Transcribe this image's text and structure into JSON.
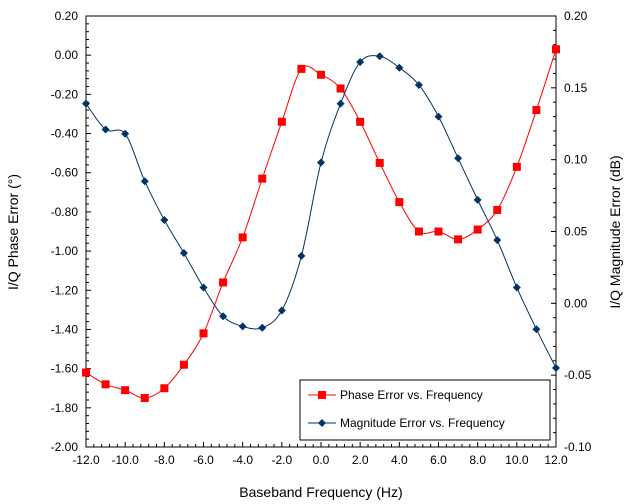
{
  "chart_data": {
    "type": "line",
    "title": "",
    "xlabel": "Baseband Frequency (Hz)",
    "ylabel": "I/Q Phase Error (°)",
    "y2label": "I/Q Magnitude Error (dB)",
    "xlim": [
      -12,
      12
    ],
    "ylim": [
      -2.0,
      0.2
    ],
    "y2lim": [
      -0.1,
      0.2
    ],
    "x_ticks": [
      "-12.0",
      "-10.0",
      "-8.0",
      "-6.0",
      "-4.0",
      "-2.0",
      "0.0",
      "2.0",
      "4.0",
      "6.0",
      "8.0",
      "10.0",
      "12.0"
    ],
    "x_tick_values": [
      -12,
      -10,
      -8,
      -6,
      -4,
      -2,
      0,
      2,
      4,
      6,
      8,
      10,
      12
    ],
    "y_ticks": [
      "0.20",
      "0.00",
      "-0.20",
      "-0.40",
      "-0.60",
      "-0.80",
      "-1.00",
      "-1.20",
      "-1.40",
      "-1.60",
      "-1.80",
      "-2.00"
    ],
    "y_tick_values": [
      0.2,
      0.0,
      -0.2,
      -0.4,
      -0.6,
      -0.8,
      -1.0,
      -1.2,
      -1.4,
      -1.6,
      -1.8,
      -2.0
    ],
    "y2_ticks": [
      "0.20",
      "0.15",
      "0.10",
      "0.05",
      "0.00",
      "-0.05",
      "-0.10"
    ],
    "y2_tick_values": [
      0.2,
      0.15,
      0.1,
      0.05,
      0.0,
      -0.05,
      -0.1
    ],
    "grid": false,
    "legend_position": "bottom-right",
    "series": [
      {
        "name": "Phase Error vs. Frequency",
        "axis": "left",
        "color": "#ff0000",
        "marker": "square",
        "x": [
          -12,
          -11,
          -10,
          -9,
          -8,
          -7,
          -6,
          -5,
          -4,
          -3,
          -2,
          -1,
          0,
          1,
          2,
          3,
          4,
          5,
          6,
          7,
          8,
          9,
          10,
          11,
          12
        ],
        "y": [
          -1.62,
          -1.68,
          -1.71,
          -1.75,
          -1.7,
          -1.58,
          -1.42,
          -1.16,
          -0.93,
          -0.63,
          -0.34,
          -0.07,
          -0.1,
          -0.17,
          -0.34,
          -0.55,
          -0.75,
          -0.9,
          -0.9,
          -0.94,
          -0.89,
          -0.79,
          -0.57,
          -0.28,
          0.03
        ]
      },
      {
        "name": "Magnitude Error vs. Frequency",
        "axis": "right",
        "color": "#003366",
        "marker": "diamond",
        "x": [
          -12,
          -11,
          -10,
          -9,
          -8,
          -7,
          -6,
          -5,
          -4,
          -3,
          -2,
          -1,
          0,
          1,
          2,
          3,
          4,
          5,
          6,
          7,
          8,
          9,
          10,
          11,
          12
        ],
        "y": [
          0.139,
          0.121,
          0.118,
          0.085,
          0.058,
          0.035,
          0.011,
          -0.009,
          -0.016,
          -0.017,
          -0.005,
          0.033,
          0.098,
          0.139,
          0.168,
          0.172,
          0.164,
          0.152,
          0.13,
          0.101,
          0.072,
          0.044,
          0.011,
          -0.018,
          -0.045
        ]
      }
    ]
  }
}
